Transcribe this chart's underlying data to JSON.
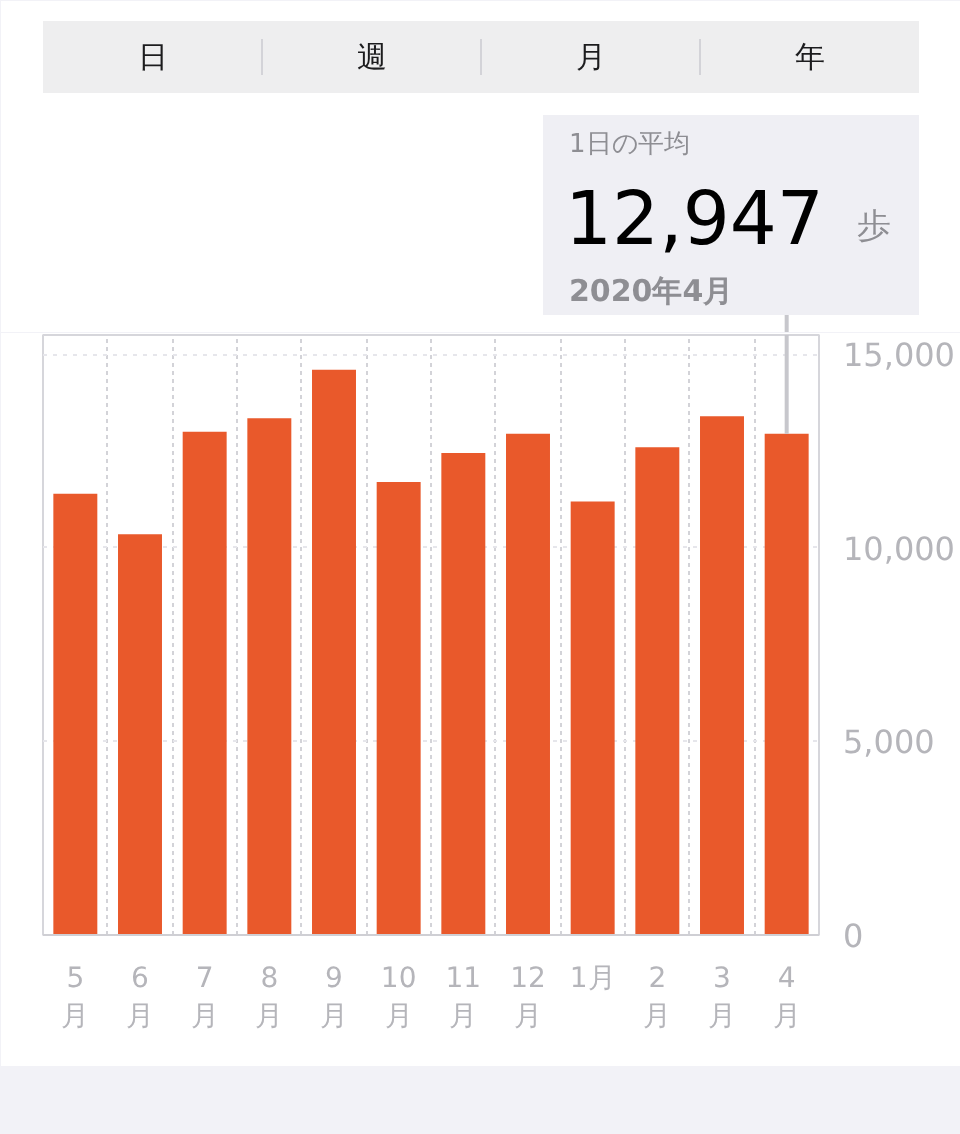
{
  "chart_data": {
    "type": "bar",
    "categories": [
      "5\n月",
      "6\n月",
      "7\n月",
      "8\n月",
      "9\n月",
      "10\n月",
      "11\n月",
      "12\n月",
      "1月",
      "2\n月",
      "3\n月",
      "4\n月"
    ],
    "values": [
      11400,
      10350,
      13000,
      13350,
      14600,
      11700,
      12450,
      12950,
      11200,
      12600,
      13400,
      12947
    ],
    "color": "#e9592b",
    "ylim": [
      0,
      15500
    ],
    "yticks": [
      0,
      {
        "value": 5000,
        "label": "5,000"
      },
      {
        "value": 10000,
        "label": "10,000"
      },
      {
        "value": 15000,
        "label": "15,000"
      }
    ],
    "grid": true,
    "annotations": [
      "日",
      "週",
      "月",
      "年",
      "1日の平均",
      {
        "text": "12,947",
        "x": "4\n月",
        "y": 12947
      },
      "歩",
      "2020年4月"
    ]
  }
}
